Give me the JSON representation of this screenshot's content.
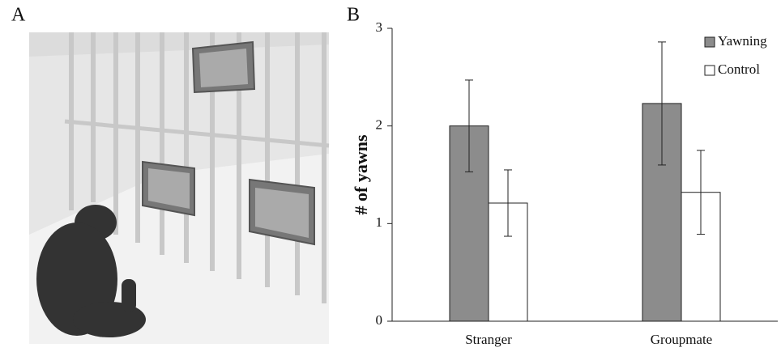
{
  "panel_a": {
    "label": "A"
  },
  "chart_data": {
    "type": "bar",
    "panel_label": "B",
    "ylabel": "# of yawns",
    "categories": [
      "Stranger",
      "Groupmate"
    ],
    "series": [
      {
        "name": "Yawning",
        "color": "#8c8c8c",
        "values": [
          2.0,
          2.23
        ],
        "errors": [
          0.47,
          0.63
        ]
      },
      {
        "name": "Control",
        "color": "#ffffff",
        "values": [
          1.21,
          1.32
        ],
        "errors": [
          0.34,
          0.43
        ]
      }
    ],
    "ylim": [
      0,
      3
    ],
    "yticks": [
      0,
      1,
      2,
      3
    ],
    "legend": "upper right",
    "grid": false
  }
}
